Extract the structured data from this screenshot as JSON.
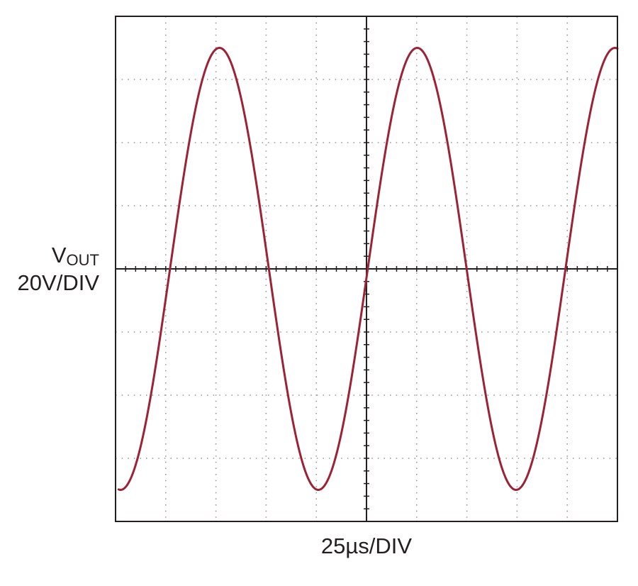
{
  "chart_data": {
    "type": "line",
    "title": "",
    "ylabel": {
      "main": "V",
      "subscript": "OUT",
      "scale": "20V/DIV"
    },
    "xlabel": "25µs/DIV",
    "divisions": {
      "x": 10,
      "y": 8
    },
    "x_scale_us_per_div": 25,
    "y_scale_v_per_div": 20,
    "grid": "dotted",
    "xlim_us": [
      0,
      250
    ],
    "ylim_v": [
      -80,
      80
    ],
    "series": [
      {
        "name": "VOUT",
        "color": "#9b2335",
        "waveform": "sine",
        "amplitude_v": 70,
        "period_us": 98.5,
        "offset_v": 0,
        "points": [
          {
            "t_us": 2.5,
            "v_volts": -70
          },
          {
            "t_us": 27.4,
            "v_volts": 0
          },
          {
            "t_us": 54.6,
            "v_volts": 70
          },
          {
            "t_us": 76.6,
            "v_volts": 0
          },
          {
            "t_us": 101.3,
            "v_volts": -70
          },
          {
            "t_us": 126.1,
            "v_volts": 0
          },
          {
            "t_us": 152.8,
            "v_volts": 70
          },
          {
            "t_us": 177.8,
            "v_volts": 0
          },
          {
            "t_us": 202.1,
            "v_volts": -70
          },
          {
            "t_us": 228.2,
            "v_volts": 0
          },
          {
            "t_us": 250,
            "v_volts": 52
          }
        ]
      }
    ]
  }
}
